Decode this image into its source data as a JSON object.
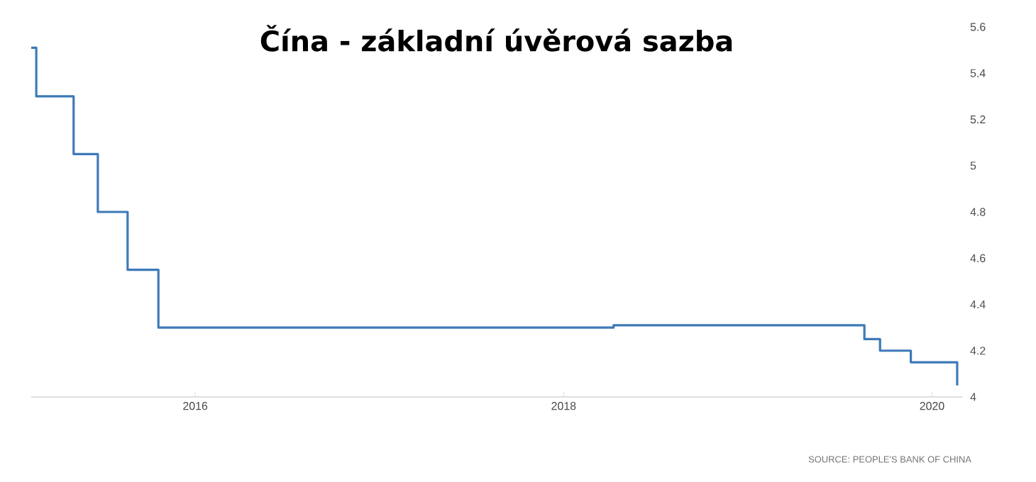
{
  "chart_data": {
    "type": "step",
    "title": "Čína - základní úvěrová sazba",
    "annotations": [
      "SOURCE: PEOPLE'S BANK OF CHINA"
    ],
    "x": [
      "2015-02-10",
      "2015-02-20",
      "2015-05-05",
      "2015-06-22",
      "2015-08-20",
      "2015-10-20",
      "2018-04-10",
      "2019-08-20",
      "2019-09-20",
      "2019-11-20",
      "2020-02-20"
    ],
    "series": [
      {
        "color": "#3d7ab8",
        "values": [
          5.51,
          5.3,
          5.05,
          4.8,
          4.55,
          4.3,
          4.31,
          4.25,
          4.2,
          4.15,
          4.05
        ]
      }
    ],
    "xlim": [
      "2015-02-10",
      "2020-03-01"
    ],
    "xticks": [
      {
        "value": "2016-01-01",
        "label": "2016"
      },
      {
        "value": "2018-01-01",
        "label": "2018"
      },
      {
        "value": "2020-01-01",
        "label": "2020"
      }
    ],
    "ylim": [
      4,
      5.6
    ],
    "yticks": [
      4,
      4.2,
      4.4,
      4.6,
      4.8,
      5,
      5.2,
      5.4,
      5.6
    ],
    "marker": "none",
    "line_style": "solid"
  }
}
